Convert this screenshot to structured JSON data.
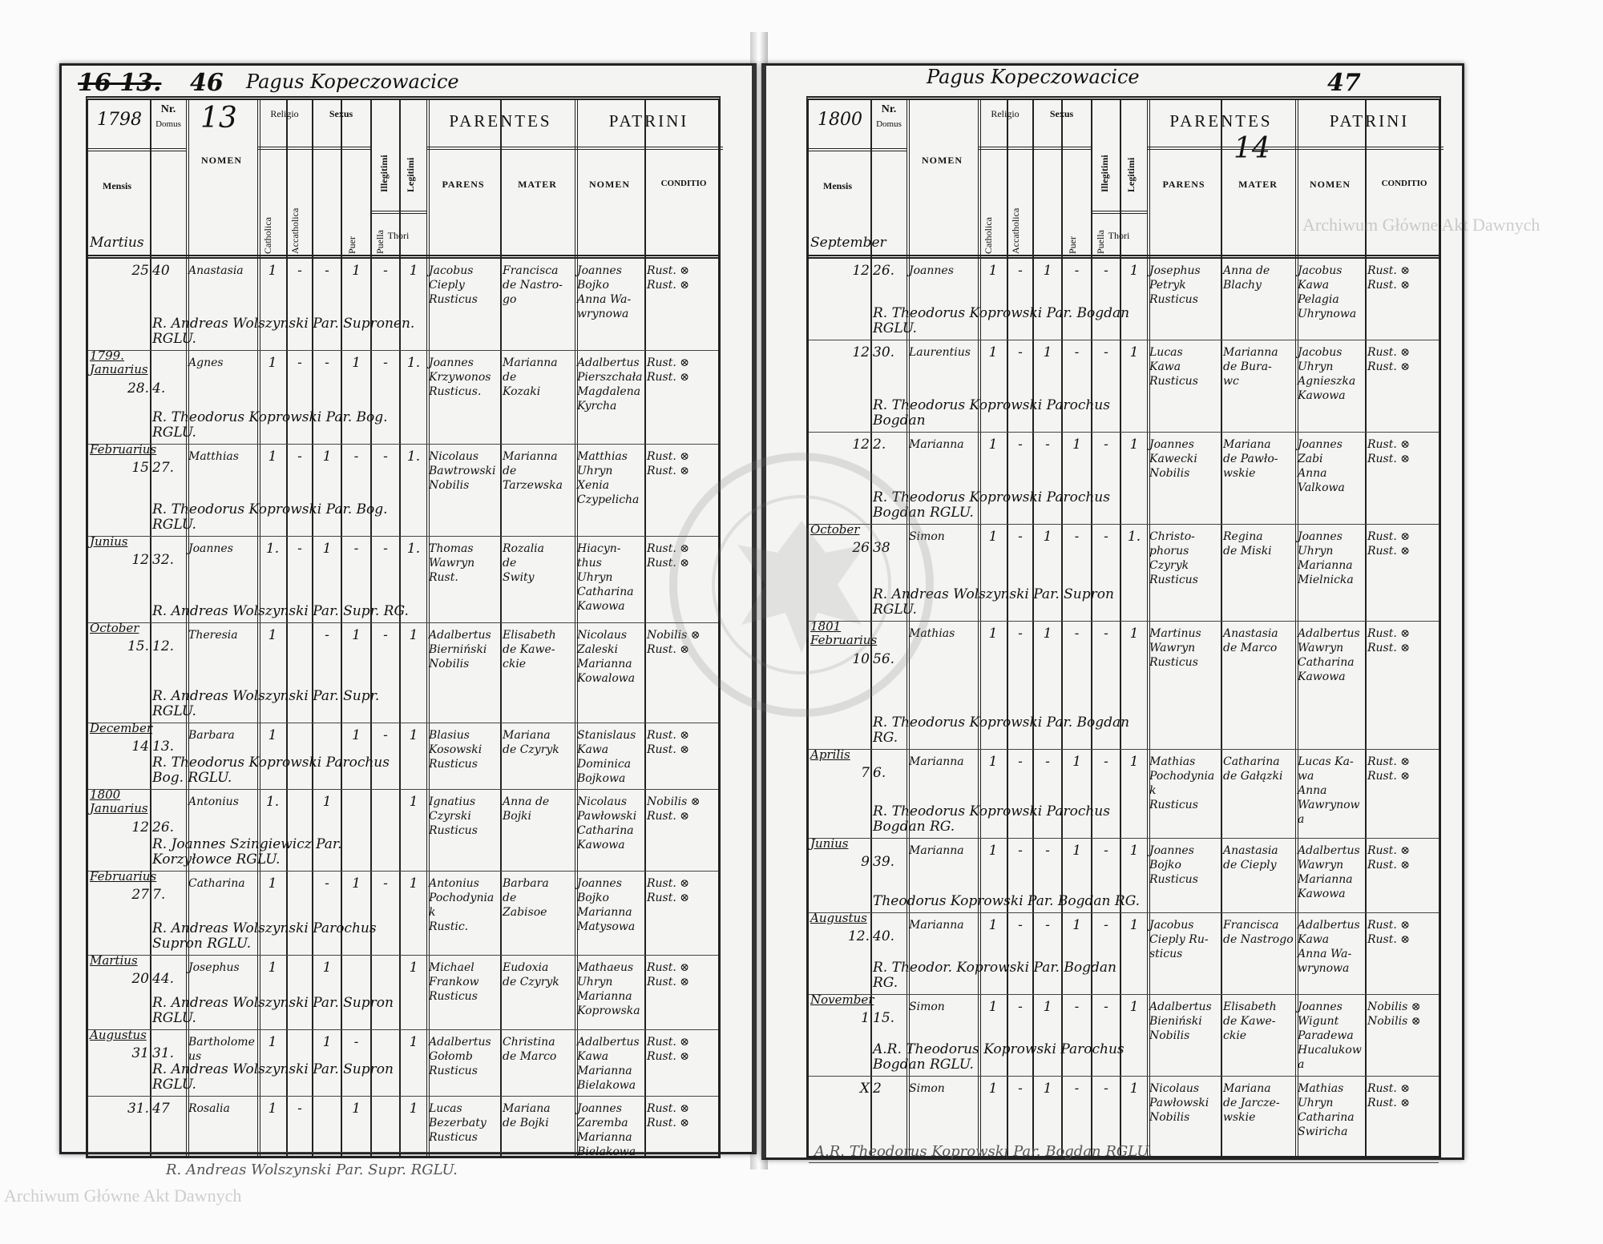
{
  "document": {
    "type": "parish baptism register, two-page spread"
  },
  "left_page": {
    "page_number": "46",
    "struck_number": "16 13.",
    "heading": "Pagus Kopeczowacice",
    "year": "1798",
    "volume_number": "13",
    "month_header": "Martius"
  },
  "right_page": {
    "page_number": "47",
    "heading": "Pagus Kopeczowacice",
    "year": "1800",
    "volume_number": "14",
    "month_header": "September"
  },
  "columns": {
    "nr": "Nr.",
    "domus": "Domus",
    "mensis": "Mensis",
    "nomen": "NOMEN",
    "religio": "Religio",
    "catholica": "Catholica",
    "acatholica": "Accatholica",
    "sexus": "Sexus",
    "puer": "Puer",
    "puella": "Puella",
    "illegitimi": "Illegitimi",
    "legitimi": "Legitimi",
    "thori": "Thori",
    "parentes": "PARENTES",
    "parens": "PARENS",
    "mater": "MATER",
    "patrini": "PATRINI",
    "patrini_nomen": "NOMEN",
    "conditio": "CONDITIO"
  },
  "left_entries": [
    {
      "month": "",
      "day": "25",
      "domus": "40",
      "nomen": "Anastasia",
      "marks": [
        "1",
        "-",
        "-",
        "1",
        "-",
        "1"
      ],
      "parens": "Jacobus\nCieply\nRusticus",
      "mater": "Francisca\nde Nastro-\ngo",
      "patrini": "Joannes\nBojko\nAnna Wa-\nwrynowa",
      "conditio": "Rust. ⊗\nRust. ⊗",
      "note": "R. Andreas Wolszynski Par. Supronen. RGLU."
    },
    {
      "month": "1799.\nJanuarius",
      "day": "28.",
      "domus": "4.",
      "nomen": "Agnes",
      "marks": [
        "1",
        "-",
        "-",
        "1",
        "-",
        "1."
      ],
      "parens": "Joannes\nKrzywonos\nRusticus.",
      "mater": "Marianna\nde\nKozaki",
      "patrini": "Adalbertus\nPierszchała\nMagdalena\nKyrcha",
      "conditio": "Rust. ⊗\nRust. ⊗",
      "note": "R. Theodorus Koprowski Par. Bog. RGLU."
    },
    {
      "month": "Februarius",
      "day": "15",
      "domus": "27.",
      "nomen": "Matthias",
      "marks": [
        "1",
        "-",
        "1",
        "-",
        "-",
        "1."
      ],
      "parens": "Nicolaus\nBawtrowski\nNobilis",
      "mater": "Marianna\nde\nTarzewska",
      "patrini": "Matthias\nUhryn\nXenia\nCzypelicha",
      "conditio": "Rust. ⊗\nRust. ⊗",
      "note": "R. Theodorus Koprowski Par. Bog. RGLU."
    },
    {
      "month": "Junius",
      "day": "12",
      "domus": "32.",
      "nomen": "Joannes",
      "marks": [
        "1.",
        "-",
        "1",
        "-",
        "-",
        "1."
      ],
      "parens": "Thomas\nWawryn\nRust.",
      "mater": "Rozalia\nde\nSwity",
      "patrini": "Hiacyn-\nthus\nUhryn\nCatharina\nKawowa",
      "conditio": "Rust. ⊗\nRust. ⊗",
      "note": "R. Andreas Wolszynski Par. Supr. RG."
    },
    {
      "month": "October",
      "day": "15.",
      "domus": "12.",
      "nomen": "Theresia",
      "marks": [
        "1",
        "",
        "-",
        "1",
        "-",
        "1"
      ],
      "parens": "Adalbertus\nBierniński\nNobilis",
      "mater": "Elisabeth\nde Kawe-\nckie",
      "patrini": "Nicolaus\nZaleski\nMarianna\nKowalowa",
      "conditio": "Nobilis ⊗\nRust. ⊗",
      "note": "R. Andreas Wolszynski Par. Supr. RGLU."
    },
    {
      "month": "December",
      "day": "14",
      "domus": "13.",
      "nomen": "Barbara",
      "marks": [
        "1",
        "",
        "",
        "1",
        "-",
        "1"
      ],
      "parens": "Blasius\nKosowski\nRusticus",
      "mater": "Mariana\nde Czyryk",
      "patrini": "Stanislaus\nKawa\nDominica\nBojkowa",
      "conditio": "Rust. ⊗\nRust. ⊗",
      "note": "R. Theodorus Koprowski Parochus Bog. RGLU."
    },
    {
      "month": "1800\nJanuarius",
      "day": "12",
      "domus": "26.",
      "nomen": "Antonius",
      "marks": [
        "1.",
        "",
        "1",
        "",
        "",
        "1"
      ],
      "parens": "Ignatius\nCzyrski\nRusticus",
      "mater": "Anna de\nBojki",
      "patrini": "Nicolaus\nPawłowski\nCatharina\nKawowa",
      "conditio": "Nobilis ⊗\nRust. ⊗",
      "note": "R. Joannes Szingiewicz Par. Korzyłowce RGLU."
    },
    {
      "month": "Februarius",
      "day": "27",
      "domus": "7.",
      "nomen": "Catharina",
      "marks": [
        "1",
        "",
        "-",
        "1",
        "-",
        "1"
      ],
      "parens": "Antonius\nPochodyniak\nRustic.",
      "mater": "Barbara\nde\nZabisoe",
      "patrini": "Joannes\nBojko\nMarianna\nMatysowa",
      "conditio": "Rust. ⊗\nRust. ⊗",
      "note": "R. Andreas Wolszynski Parochus Supron RGLU."
    },
    {
      "month": "Martius",
      "day": "20",
      "domus": "44.",
      "nomen": "Josephus",
      "marks": [
        "1",
        "",
        "1",
        "",
        "",
        "1"
      ],
      "parens": "Michael\nFrankow\nRusticus",
      "mater": "Eudoxia\nde Czyryk",
      "patrini": "Mathaeus\nUhryn\nMarianna\nKoprowska",
      "conditio": "Rust. ⊗\nRust. ⊗",
      "note": "R. Andreas Wolszynski Par. Supron RGLU."
    },
    {
      "month": "Augustus",
      "day": "31",
      "domus": "31.",
      "nomen": "Bartholomeus",
      "marks": [
        "1",
        "",
        "1",
        "-",
        "",
        "1"
      ],
      "parens": "Adalbertus\nGołomb\nRusticus",
      "mater": "Christina\nde Marco",
      "patrini": "Adalbertus\nKawa\nMarianna\nBielakowa",
      "conditio": "Rust. ⊗\nRust. ⊗",
      "note": "R. Andreas Wolszynski Par. Supron RGLU."
    },
    {
      "month": "",
      "day": "31.",
      "domus": "47",
      "nomen": "Rosalia",
      "marks": [
        "1",
        "-",
        "",
        "1",
        "",
        "1"
      ],
      "parens": "Lucas\nBezerbaty\nRusticus",
      "mater": "Mariana\nde Bojki",
      "patrini": "Joannes\nZaremba\nMarianna\nBielakowa",
      "conditio": "Rust. ⊗\nRust. ⊗",
      "note": ""
    }
  ],
  "left_footer_note": "R. Andreas Wolszynski Par. Supr. RGLU.",
  "right_entries": [
    {
      "month": "",
      "day": "12",
      "domus": "26.",
      "nomen": "Joannes",
      "marks": [
        "1",
        "-",
        "1",
        "-",
        "-",
        "1"
      ],
      "parens": "Josephus\nPetryk\nRusticus",
      "mater": "Anna de\nBlachy",
      "patrini": "Jacobus\nKawa\nPelagia\nUhrynowa",
      "conditio": "Rust. ⊗\nRust. ⊗",
      "note": "R. Theodorus Koprowski Par. Bogdan RGLU."
    },
    {
      "month": "",
      "day": "12",
      "domus": "30.",
      "nomen": "Laurentius",
      "marks": [
        "1",
        "-",
        "1",
        "-",
        "-",
        "1"
      ],
      "parens": "Lucas\nKawa\nRusticus",
      "mater": "Marianna\nde Bura-\nwc",
      "patrini": "Jacobus\nUhryn\nAgnieszka\nKawowa",
      "conditio": "Rust. ⊗\nRust. ⊗",
      "note": "R. Theodorus Koprowski Parochus Bogdan"
    },
    {
      "month": "",
      "day": "12",
      "domus": "2.",
      "nomen": "Marianna",
      "marks": [
        "1",
        "-",
        "-",
        "1",
        "-",
        "1"
      ],
      "parens": "Joannes\nKawecki\nNobilis",
      "mater": "Mariana\nde Pawło-\nwskie",
      "patrini": "Joannes\nZabi\nAnna\nValkowa",
      "conditio": "Rust. ⊗\nRust. ⊗",
      "note": "R. Theodorus Koprowski Parochus Bogdan RGLU."
    },
    {
      "month": "October",
      "day": "26",
      "domus": "38",
      "nomen": "Simon",
      "marks": [
        "1",
        "-",
        "1",
        "-",
        "-",
        "1."
      ],
      "parens": "Christo-\nphorus\nCzyryk\nRusticus",
      "mater": "Regina\nde Miski",
      "patrini": "Joannes\nUhryn\nMarianna\nMielnicka",
      "conditio": "Rust. ⊗\nRust. ⊗",
      "note": "R. Andreas Wolszynski Par. Supron RGLU."
    },
    {
      "month": "1801\nFebruarius",
      "day": "10",
      "domus": "56.",
      "nomen": "Mathias",
      "marks": [
        "1",
        "-",
        "1",
        "-",
        "-",
        "1"
      ],
      "parens": "Martinus\nWawryn\nRusticus",
      "mater": "Anastasia\nde Marco",
      "patrini": "Adalbertus\nWawryn\nCatharina\nKawowa",
      "conditio": "Rust. ⊗\nRust. ⊗",
      "note": "R. Theodorus Koprowski Par. Bogdan RG."
    },
    {
      "month": "Aprilis",
      "day": "7",
      "domus": "6.",
      "nomen": "Marianna",
      "marks": [
        "1",
        "-",
        "-",
        "1",
        "-",
        "1"
      ],
      "parens": "Mathias\nPochodyniak\nRusticus",
      "mater": "Catharina\nde Gałązki",
      "patrini": "Lucas Ka-\nwa\nAnna\nWawrynowa",
      "conditio": "Rust. ⊗\nRust. ⊗",
      "note": "R. Theodorus Koprowski Parochus Bogdan RG."
    },
    {
      "month": "Junius",
      "day": "9",
      "domus": "39.",
      "nomen": "Marianna",
      "marks": [
        "1",
        "-",
        "-",
        "1",
        "-",
        "1"
      ],
      "parens": "Joannes\nBojko\nRusticus",
      "mater": "Anastasia\nde Cieply",
      "patrini": "Adalbertus\nWawryn\nMarianna\nKawowa",
      "conditio": "Rust. ⊗\nRust. ⊗",
      "note": "Theodorus Koprowski Par. Bogdan RG."
    },
    {
      "month": "Augustus",
      "day": "12.",
      "domus": "40.",
      "nomen": "Marianna",
      "marks": [
        "1",
        "-",
        "-",
        "1",
        "-",
        "1"
      ],
      "parens": "Jacobus\nCieply Ru-\nsticus",
      "mater": "Francisca\nde Nastrogo",
      "patrini": "Adalbertus\nKawa\nAnna Wa-\nwrynowa",
      "conditio": "Rust. ⊗\nRust. ⊗",
      "note": "R. Theodor. Koprowski Par. Bogdan RG."
    },
    {
      "month": "November",
      "day": "1",
      "domus": "15.",
      "nomen": "Simon",
      "marks": [
        "1",
        "-",
        "1",
        "-",
        "-",
        "1"
      ],
      "parens": "Adalbertus\nBieniński\nNobilis",
      "mater": "Elisabeth\nde Kawe-\nckie",
      "patrini": "Joannes\nWigunt\nParadewa\nHucalukowa",
      "conditio": "Nobilis ⊗\nNobilis ⊗",
      "note": "A.R. Theodorus Koprowski Parochus Bogdan RGLU."
    },
    {
      "month": "",
      "day": "X",
      "domus": "2",
      "nomen": "Simon",
      "marks": [
        "1",
        "-",
        "1",
        "-",
        "-",
        "1"
      ],
      "parens": "Nicolaus\nPawłowski\nNobilis",
      "mater": "Mariana\nde Jarcze-\nwskie",
      "patrini": "Mathias\nUhryn\nCatharina\nSwiricha",
      "conditio": "Rust. ⊗\nRust. ⊗",
      "note": ""
    }
  ],
  "right_footer_note": "A.R. Theodorus Koprowski Par. Bogdan RGLU.",
  "watermark": "Archiwum Główne Akt Dawnych",
  "seal_text": "ARCHIWUM GŁÓWNE AKT DAWNYCH"
}
